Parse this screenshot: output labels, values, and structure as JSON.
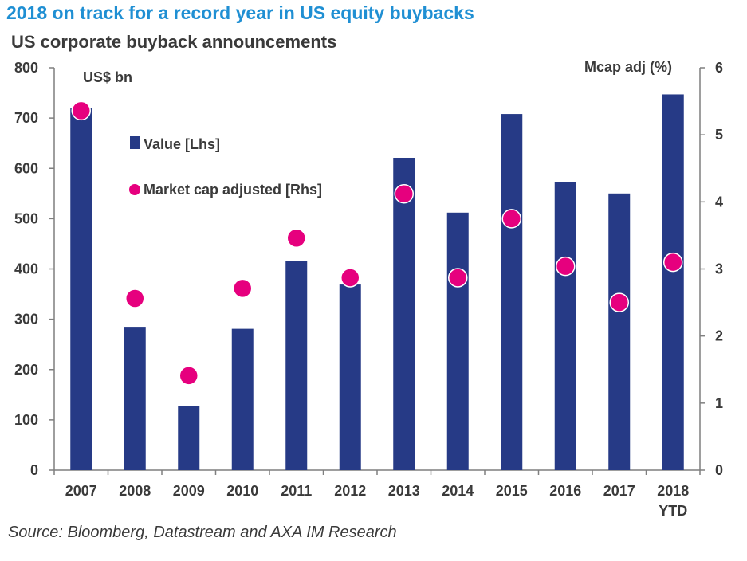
{
  "chart_data": {
    "type": "bar",
    "title": "2018 on track for a record year in US equity buybacks",
    "subtitle": "US corporate buyback announcements",
    "source": "Source: Bloomberg, Datastream and AXA IM Research",
    "categories": [
      "2007",
      "2008",
      "2009",
      "2010",
      "2011",
      "2012",
      "2013",
      "2014",
      "2015",
      "2016",
      "2017",
      "2018"
    ],
    "category_sublabels": [
      "",
      "",
      "",
      "",
      "",
      "",
      "",
      "",
      "",
      "",
      "",
      "YTD"
    ],
    "left_axis": {
      "label": "US$ bn",
      "ylim": [
        0,
        800
      ],
      "ticks": [
        0,
        100,
        200,
        300,
        400,
        500,
        600,
        700,
        800
      ]
    },
    "right_axis": {
      "label": "Mcap adj (%)",
      "ylim": [
        0,
        6
      ],
      "ticks": [
        0,
        1,
        2,
        3,
        4,
        5,
        6
      ]
    },
    "series": [
      {
        "name": "Value [Lhs]",
        "type": "bar",
        "axis": "left",
        "color": "#263a86",
        "values": [
          720,
          285,
          128,
          281,
          416,
          369,
          621,
          512,
          708,
          572,
          550,
          747
        ]
      },
      {
        "name": "Market cap adjusted [Rhs]",
        "type": "scatter",
        "axis": "right",
        "color": "#e6007e",
        "values": [
          5.36,
          2.56,
          1.41,
          2.71,
          3.46,
          2.87,
          4.12,
          2.87,
          3.75,
          3.04,
          2.5,
          3.1
        ]
      }
    ],
    "legend": "top-left"
  }
}
